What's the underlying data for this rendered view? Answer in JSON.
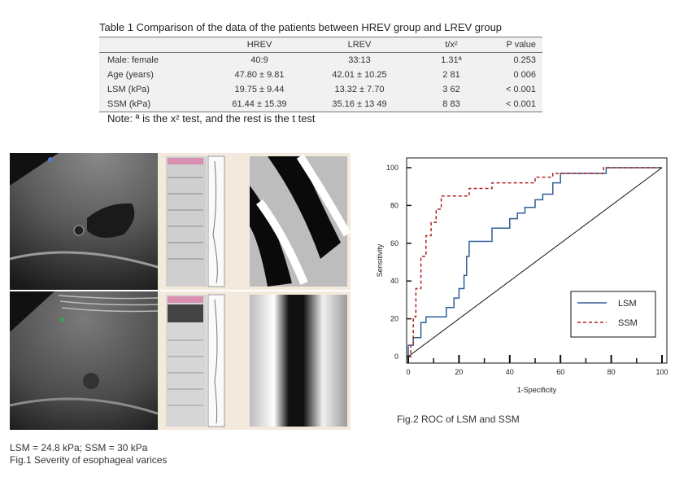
{
  "table": {
    "caption": "Table 1 Comparison of the data of the patients between HREV group and LREV group",
    "headers": [
      "",
      "HREV",
      "LREV",
      "t/x²",
      "P value"
    ],
    "rows": [
      [
        "Male: female",
        "40:9",
        "33:13",
        "1.31ª",
        "0.253"
      ],
      [
        "Age (years)",
        "47.80 ± 9.81",
        "42.01 ± 10.25",
        "2 81",
        "0 006"
      ],
      [
        "LSM (kPa)",
        "19.75 ± 9.44",
        "13.32 ± 7.70",
        "3 62",
        "< 0.001"
      ],
      [
        "SSM (kPa)",
        "61.44 ± 15.39",
        "35.16 ± 13 49",
        "8 83",
        "< 0.001"
      ]
    ],
    "note": "Note: ª is the x² test, and the rest is the t test"
  },
  "fig1": {
    "caption_line1": "LSM = 24.8 kPa; SSM = 30 kPa",
    "caption_line2": "Fig.1 Severity of esophageal varices"
  },
  "fig2": {
    "caption": "Fig.2 ROC of LSM and SSM"
  },
  "chart_data": {
    "type": "line",
    "title": "",
    "xlabel": "1-Specificity",
    "ylabel": "Sensitivity",
    "xlim": [
      0,
      100
    ],
    "ylim": [
      0,
      100
    ],
    "xticks": [
      0,
      20,
      40,
      60,
      80,
      100
    ],
    "yticks": [
      0,
      20,
      40,
      60,
      80,
      100
    ],
    "legend_position": "bottom-right",
    "series": [
      {
        "name": "LSM",
        "color": "#2e5f99",
        "dash": "solid",
        "points": [
          [
            0,
            0
          ],
          [
            0,
            6
          ],
          [
            2,
            6
          ],
          [
            2,
            10
          ],
          [
            5,
            10
          ],
          [
            5,
            18
          ],
          [
            7,
            18
          ],
          [
            7,
            21
          ],
          [
            15,
            21
          ],
          [
            15,
            26
          ],
          [
            18,
            26
          ],
          [
            18,
            31
          ],
          [
            20,
            31
          ],
          [
            20,
            36
          ],
          [
            22,
            36
          ],
          [
            22,
            43
          ],
          [
            23,
            43
          ],
          [
            23,
            53
          ],
          [
            24,
            53
          ],
          [
            24,
            61
          ],
          [
            33,
            61
          ],
          [
            33,
            68
          ],
          [
            40,
            68
          ],
          [
            40,
            73
          ],
          [
            43,
            73
          ],
          [
            43,
            76
          ],
          [
            46,
            76
          ],
          [
            46,
            79
          ],
          [
            50,
            79
          ],
          [
            50,
            83
          ],
          [
            53,
            83
          ],
          [
            53,
            86
          ],
          [
            57,
            86
          ],
          [
            57,
            92
          ],
          [
            60,
            92
          ],
          [
            60,
            97
          ],
          [
            78,
            97
          ],
          [
            78,
            100
          ],
          [
            100,
            100
          ]
        ]
      },
      {
        "name": "SSM",
        "color": "#b22222",
        "dash": "dashed",
        "points": [
          [
            0,
            0
          ],
          [
            1,
            0
          ],
          [
            1,
            6
          ],
          [
            2,
            6
          ],
          [
            2,
            21
          ],
          [
            3,
            21
          ],
          [
            3,
            36
          ],
          [
            5,
            36
          ],
          [
            5,
            53
          ],
          [
            7,
            53
          ],
          [
            7,
            64
          ],
          [
            9,
            64
          ],
          [
            9,
            71
          ],
          [
            11,
            71
          ],
          [
            11,
            78
          ],
          [
            13,
            78
          ],
          [
            13,
            85
          ],
          [
            24,
            85
          ],
          [
            24,
            89
          ],
          [
            33,
            89
          ],
          [
            33,
            92
          ],
          [
            50,
            92
          ],
          [
            50,
            95
          ],
          [
            57,
            95
          ],
          [
            57,
            97
          ],
          [
            77,
            97
          ],
          [
            77,
            100
          ],
          [
            100,
            100
          ]
        ]
      },
      {
        "name": "",
        "color": "#111111",
        "dash": "solid",
        "points": [
          [
            0,
            0
          ],
          [
            100,
            100
          ]
        ]
      }
    ]
  }
}
